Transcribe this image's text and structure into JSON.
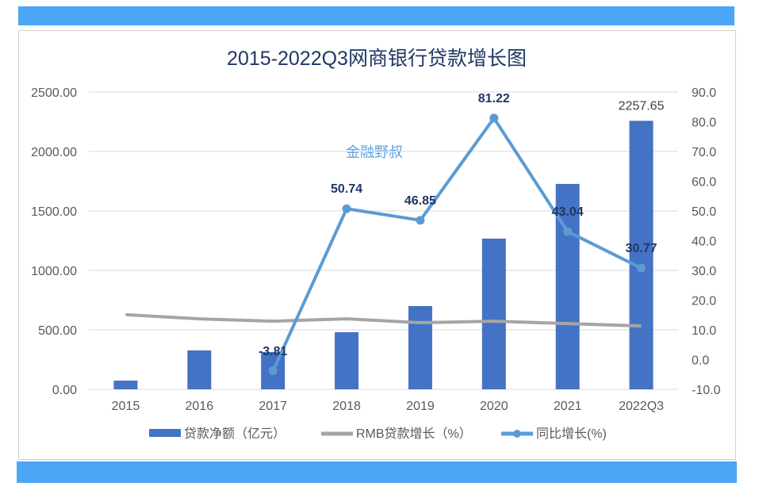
{
  "chart_data": {
    "type": "bar+line",
    "title": "2015-2022Q3网商银行贷款增长图",
    "watermark": "金融野叔",
    "categories": [
      "2015",
      "2016",
      "2017",
      "2018",
      "2019",
      "2020",
      "2021",
      "2022Q3"
    ],
    "y_left": {
      "range": [
        0,
        2500
      ],
      "ticks": [
        "0.00",
        "500.00",
        "1000.00",
        "1500.00",
        "2000.00",
        "2500.00"
      ]
    },
    "y_right": {
      "range": [
        -10,
        90
      ],
      "ticks": [
        "-10.0",
        "0.0",
        "10.0",
        "20.0",
        "30.0",
        "40.0",
        "50.0",
        "60.0",
        "70.0",
        "80.0",
        "90.0"
      ]
    },
    "grid": true,
    "legend_position": "bottom",
    "series": [
      {
        "name": "贷款净额（亿元）",
        "type": "bar",
        "axis": "left",
        "color": "#4472c4",
        "values": [
          73,
          327,
          313,
          480,
          700,
          1267,
          1727,
          2257.65
        ],
        "labels": [
          "",
          "",
          "",
          "",
          "",
          "",
          "",
          "2257.65"
        ]
      },
      {
        "name": "RMB贷款增长（%）",
        "type": "line",
        "axis": "right",
        "color": "#a5a5a5",
        "values": [
          15.1,
          13.7,
          12.9,
          13.7,
          12.4,
          12.9,
          12.1,
          11.3
        ]
      },
      {
        "name": "同比增长(%)",
        "type": "line",
        "axis": "right",
        "color": "#5b9bd5",
        "markers": true,
        "values": [
          null,
          null,
          -3.81,
          50.74,
          46.85,
          81.22,
          43.04,
          30.77
        ],
        "labels": [
          "",
          "",
          "-3.81",
          "50.74",
          "46.85",
          "81.22",
          "43.04",
          "30.77"
        ]
      }
    ]
  }
}
